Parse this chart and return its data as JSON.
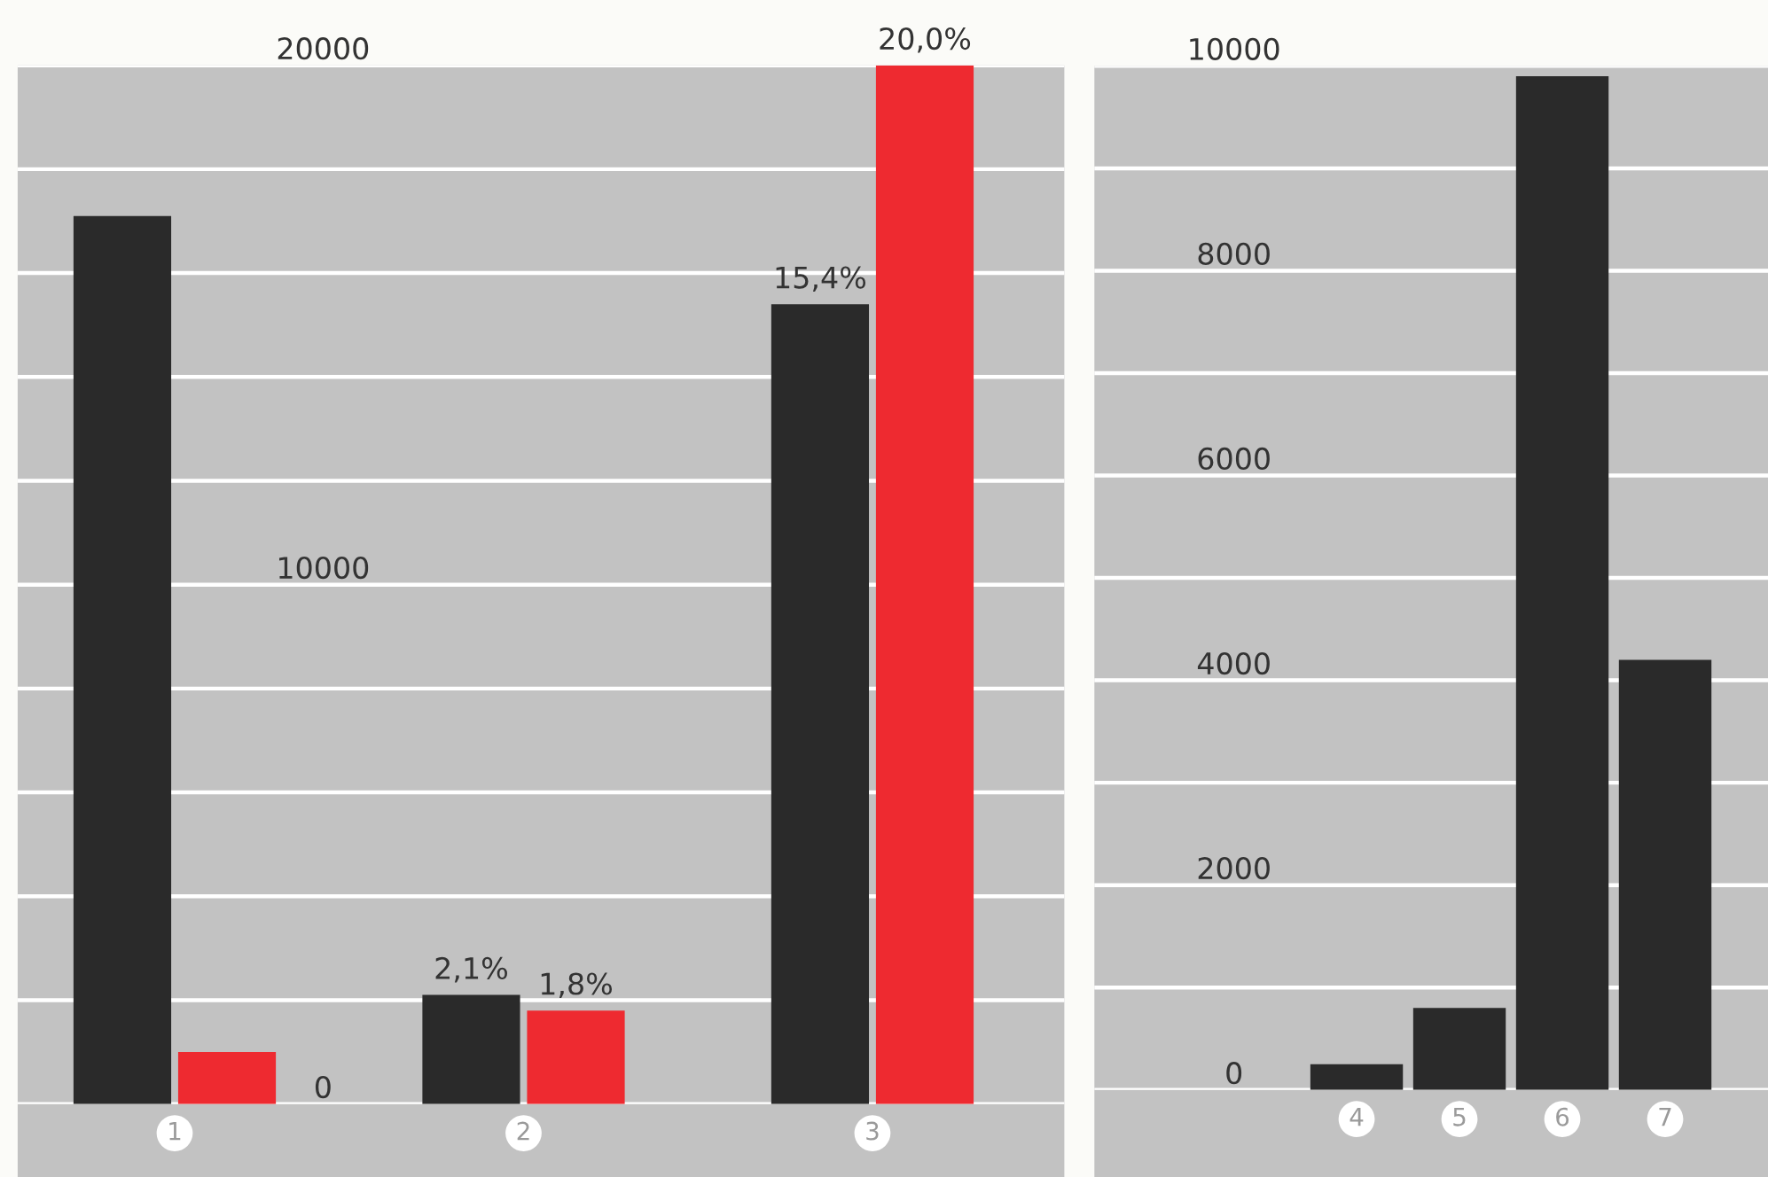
{
  "chart_data": [
    {
      "type": "bar",
      "categories": [
        "1",
        "2",
        "3"
      ],
      "series": [
        {
          "color": "#2a2a2a",
          "values": [
            17100,
            null,
            null
          ]
        },
        {
          "color": "#ee2a30",
          "values": [
            1000,
            null,
            null
          ]
        },
        {
          "color": "#2a2a2a",
          "values": [
            null,
            2.1,
            15.4
          ],
          "axis": "y2",
          "value_labels": [
            null,
            "2,1%",
            "15,4%"
          ]
        },
        {
          "color": "#ee2a30",
          "values": [
            null,
            1.8,
            20.0
          ],
          "axis": "y2",
          "value_labels": [
            null,
            "1,8%",
            "20,0%"
          ]
        }
      ],
      "ylim": [
        0,
        20000
      ],
      "yticks": [
        0,
        {
          "value": 2000,
          "label": null
        },
        {
          "value": 4000,
          "label": null
        },
        {
          "value": 6000,
          "label": null
        },
        {
          "value": 8000,
          "label": null
        },
        10000,
        {
          "value": 12000,
          "label": null
        },
        {
          "value": 14000,
          "label": null
        },
        {
          "value": 16000,
          "label": null
        },
        {
          "value": 18000,
          "label": null
        },
        20000
      ],
      "y2lim": [
        0,
        20
      ],
      "grid": "y"
    },
    {
      "type": "bar",
      "categories": [
        "4",
        "5",
        "6",
        "7"
      ],
      "values": [
        250,
        800,
        9900,
        4200
      ],
      "color": "#2a2a2a",
      "ylim": [
        0,
        10000
      ],
      "yticks": [
        0,
        {
          "value": 1000,
          "label": null
        },
        2000,
        {
          "value": 3000,
          "label": null
        },
        4000,
        {
          "value": 5000,
          "label": null
        },
        6000,
        {
          "value": 7000,
          "label": null
        },
        8000,
        {
          "value": 9000,
          "label": null
        },
        10000
      ],
      "grid": "y"
    }
  ]
}
